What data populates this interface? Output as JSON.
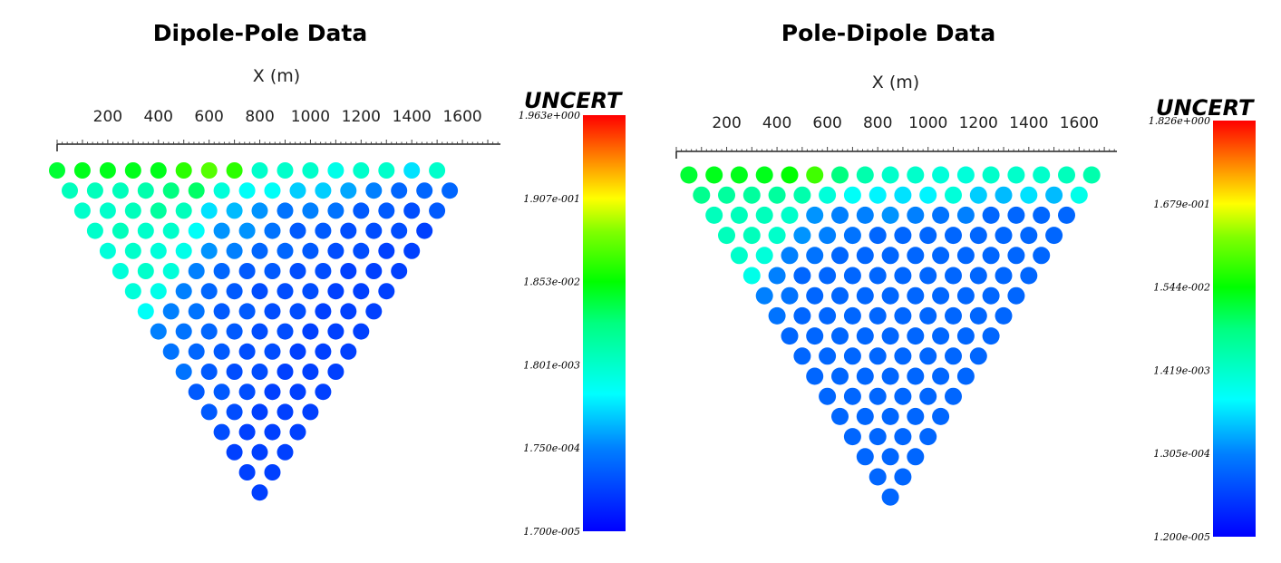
{
  "chart_data": [
    {
      "type": "scatter",
      "title": "Dipole-Pole Data",
      "xlabel": "X (m)",
      "x_ticks": [
        "200",
        "400",
        "600",
        "800",
        "1000",
        "1200",
        "1400",
        "1600"
      ],
      "x_tick_values": [
        200,
        400,
        600,
        800,
        1000,
        1200,
        1400,
        1600
      ],
      "xlim": [
        0,
        1750
      ],
      "x_start": 0,
      "x_step": 100,
      "colorbar": {
        "title": "UNCERT",
        "labels": [
          "1.963e+000",
          "1.907e-001",
          "1.853e-002",
          "1.801e-003",
          "1.750e-004",
          "1.700e-005"
        ],
        "scale": "log"
      },
      "levels": [
        [
          0.56,
          0.58,
          0.58,
          0.58,
          0.58,
          0.64,
          0.68,
          0.64,
          0.4,
          0.4,
          0.4,
          0.36,
          0.4,
          0.4,
          0.3,
          0.4
        ],
        [
          0.42,
          0.42,
          0.42,
          0.44,
          0.5,
          0.52,
          0.38,
          0.34,
          0.34,
          0.28,
          0.28,
          0.24,
          0.2,
          0.16,
          0.16,
          0.16
        ],
        [
          0.4,
          0.4,
          0.42,
          0.46,
          0.42,
          0.3,
          0.26,
          0.22,
          0.18,
          0.2,
          0.18,
          0.14,
          0.14,
          0.12,
          0.14
        ],
        [
          0.4,
          0.42,
          0.4,
          0.4,
          0.34,
          0.22,
          0.22,
          0.18,
          0.14,
          0.14,
          0.12,
          0.12,
          0.12,
          0.1
        ],
        [
          0.38,
          0.4,
          0.38,
          0.36,
          0.22,
          0.2,
          0.16,
          0.16,
          0.14,
          0.12,
          0.12,
          0.1,
          0.1
        ],
        [
          0.38,
          0.4,
          0.38,
          0.2,
          0.16,
          0.14,
          0.14,
          0.12,
          0.12,
          0.1,
          0.1,
          0.1
        ],
        [
          0.38,
          0.36,
          0.2,
          0.16,
          0.14,
          0.12,
          0.12,
          0.12,
          0.1,
          0.1,
          0.1
        ],
        [
          0.34,
          0.2,
          0.18,
          0.14,
          0.14,
          0.12,
          0.12,
          0.1,
          0.1,
          0.1
        ],
        [
          0.2,
          0.18,
          0.16,
          0.14,
          0.12,
          0.12,
          0.1,
          0.1,
          0.1
        ],
        [
          0.18,
          0.16,
          0.14,
          0.12,
          0.12,
          0.1,
          0.1,
          0.1
        ],
        [
          0.18,
          0.14,
          0.12,
          0.12,
          0.1,
          0.1,
          0.1
        ],
        [
          0.14,
          0.14,
          0.12,
          0.1,
          0.1,
          0.1
        ],
        [
          0.14,
          0.12,
          0.1,
          0.1,
          0.1
        ],
        [
          0.12,
          0.1,
          0.1,
          0.1
        ],
        [
          0.1,
          0.1,
          0.1
        ],
        [
          0.1,
          0.1
        ],
        [
          0.1
        ]
      ]
    },
    {
      "type": "scatter",
      "title": "Pole-Dipole Data",
      "xlabel": "X (m)",
      "x_ticks": [
        "200",
        "400",
        "600",
        "800",
        "1000",
        "1200",
        "1400",
        "1600"
      ],
      "x_tick_values": [
        200,
        400,
        600,
        800,
        1000,
        1200,
        1400,
        1600
      ],
      "xlim": [
        0,
        1750
      ],
      "x_start": 50,
      "x_step": 100,
      "colorbar": {
        "title": "UNCERT",
        "labels": [
          "1.826e+000",
          "1.679e-001",
          "1.544e-002",
          "1.419e-003",
          "1.305e-004",
          "1.200e-005"
        ],
        "scale": "log"
      },
      "levels": [
        [
          0.56,
          0.58,
          0.58,
          0.58,
          0.6,
          0.66,
          0.5,
          0.44,
          0.4,
          0.4,
          0.38,
          0.38,
          0.4,
          0.4,
          0.4,
          0.42,
          0.44
        ],
        [
          0.48,
          0.46,
          0.46,
          0.46,
          0.44,
          0.38,
          0.34,
          0.32,
          0.3,
          0.32,
          0.38,
          0.28,
          0.26,
          0.3,
          0.26,
          0.36
        ],
        [
          0.42,
          0.42,
          0.42,
          0.4,
          0.22,
          0.2,
          0.2,
          0.22,
          0.2,
          0.18,
          0.2,
          0.16,
          0.16,
          0.16,
          0.16
        ],
        [
          0.42,
          0.42,
          0.4,
          0.22,
          0.2,
          0.18,
          0.16,
          0.16,
          0.16,
          0.16,
          0.16,
          0.16,
          0.16,
          0.16
        ],
        [
          0.4,
          0.38,
          0.2,
          0.18,
          0.16,
          0.16,
          0.16,
          0.16,
          0.16,
          0.16,
          0.16,
          0.16,
          0.16
        ],
        [
          0.36,
          0.2,
          0.16,
          0.16,
          0.16,
          0.16,
          0.16,
          0.16,
          0.16,
          0.16,
          0.16,
          0.16
        ],
        [
          0.2,
          0.18,
          0.16,
          0.16,
          0.16,
          0.16,
          0.16,
          0.16,
          0.16,
          0.16,
          0.16
        ],
        [
          0.18,
          0.16,
          0.16,
          0.16,
          0.16,
          0.16,
          0.16,
          0.16,
          0.16,
          0.16
        ],
        [
          0.16,
          0.16,
          0.16,
          0.16,
          0.16,
          0.16,
          0.16,
          0.16,
          0.16
        ],
        [
          0.16,
          0.16,
          0.16,
          0.16,
          0.16,
          0.16,
          0.16,
          0.16
        ],
        [
          0.16,
          0.16,
          0.16,
          0.16,
          0.16,
          0.16,
          0.16
        ],
        [
          0.16,
          0.16,
          0.16,
          0.16,
          0.16,
          0.16
        ],
        [
          0.16,
          0.16,
          0.16,
          0.16,
          0.16
        ],
        [
          0.16,
          0.16,
          0.16,
          0.16
        ],
        [
          0.16,
          0.16,
          0.16
        ],
        [
          0.16,
          0.16
        ],
        [
          0.16
        ]
      ]
    }
  ]
}
